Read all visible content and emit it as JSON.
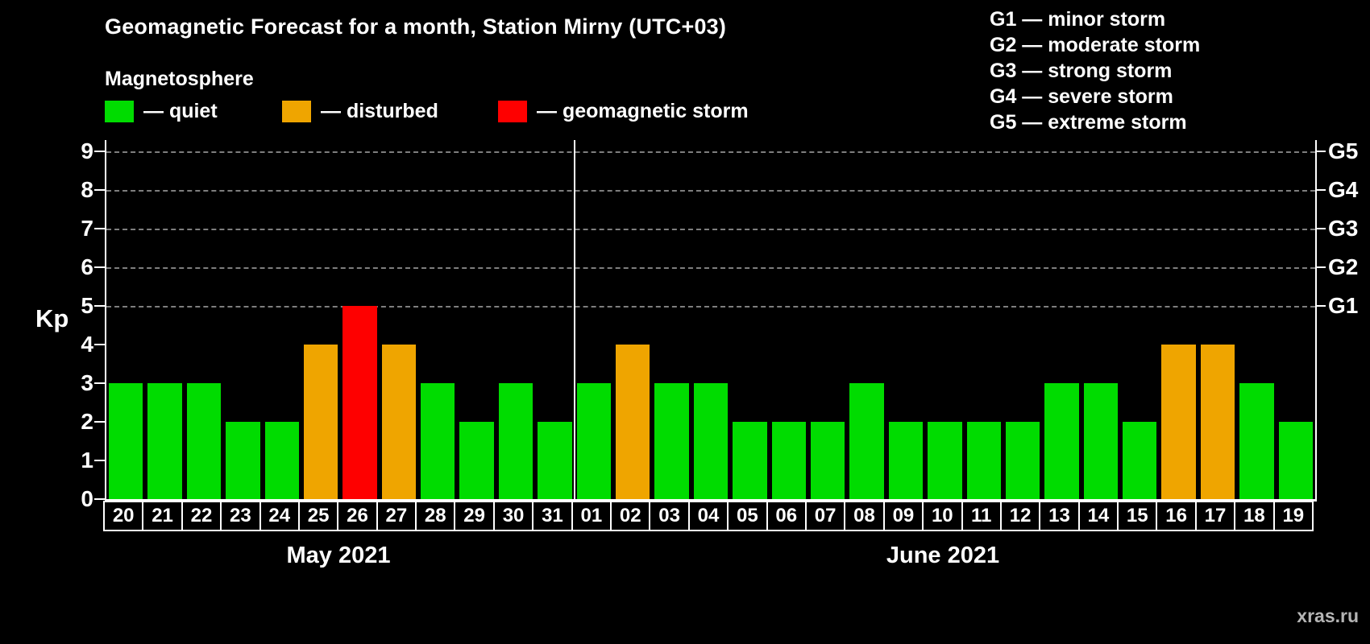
{
  "title": "Geomagnetic Forecast for a month, Station Mirny (UTC+03)",
  "legend": {
    "heading": "Magnetosphere",
    "items": [
      {
        "status": "quiet",
        "label": "— quiet"
      },
      {
        "status": "disturbed",
        "label": "— disturbed"
      },
      {
        "status": "storm",
        "label": "— geomagnetic storm"
      }
    ]
  },
  "status_colors": {
    "quiet": "#00dc00",
    "disturbed": "#efa500",
    "storm": "#fe0000"
  },
  "storm_scale": [
    "G1 — minor storm",
    "G2 — moderate storm",
    "G3 — strong storm",
    "G4 — severe storm",
    "G5 — extreme storm"
  ],
  "watermark": "xras.ru",
  "chart_data": {
    "type": "bar",
    "title": "Geomagnetic Forecast for a month, Station Mirny (UTC+03)",
    "ylabel": "Kp",
    "ylim": [
      0,
      9
    ],
    "yticks": [
      0,
      1,
      2,
      3,
      4,
      5,
      6,
      7,
      8,
      9
    ],
    "grid_levels": [
      5,
      6,
      7,
      8,
      9
    ],
    "grid": true,
    "right_axis": [
      {
        "label": "G1",
        "kp": 5
      },
      {
        "label": "G2",
        "kp": 6
      },
      {
        "label": "G3",
        "kp": 7
      },
      {
        "label": "G4",
        "kp": 8
      },
      {
        "label": "G5",
        "kp": 9
      }
    ],
    "months": [
      {
        "label": "May 2021",
        "days": [
          {
            "day": "20",
            "kp": 3,
            "status": "quiet"
          },
          {
            "day": "21",
            "kp": 3,
            "status": "quiet"
          },
          {
            "day": "22",
            "kp": 3,
            "status": "quiet"
          },
          {
            "day": "23",
            "kp": 2,
            "status": "quiet"
          },
          {
            "day": "24",
            "kp": 2,
            "status": "quiet"
          },
          {
            "day": "25",
            "kp": 4,
            "status": "disturbed"
          },
          {
            "day": "26",
            "kp": 5,
            "status": "storm"
          },
          {
            "day": "27",
            "kp": 4,
            "status": "disturbed"
          },
          {
            "day": "28",
            "kp": 3,
            "status": "quiet"
          },
          {
            "day": "29",
            "kp": 2,
            "status": "quiet"
          },
          {
            "day": "30",
            "kp": 3,
            "status": "quiet"
          },
          {
            "day": "31",
            "kp": 2,
            "status": "quiet"
          }
        ]
      },
      {
        "label": "June 2021",
        "days": [
          {
            "day": "01",
            "kp": 3,
            "status": "quiet"
          },
          {
            "day": "02",
            "kp": 4,
            "status": "disturbed"
          },
          {
            "day": "03",
            "kp": 3,
            "status": "quiet"
          },
          {
            "day": "04",
            "kp": 3,
            "status": "quiet"
          },
          {
            "day": "05",
            "kp": 2,
            "status": "quiet"
          },
          {
            "day": "06",
            "kp": 2,
            "status": "quiet"
          },
          {
            "day": "07",
            "kp": 2,
            "status": "quiet"
          },
          {
            "day": "08",
            "kp": 3,
            "status": "quiet"
          },
          {
            "day": "09",
            "kp": 2,
            "status": "quiet"
          },
          {
            "day": "10",
            "kp": 2,
            "status": "quiet"
          },
          {
            "day": "11",
            "kp": 2,
            "status": "quiet"
          },
          {
            "day": "12",
            "kp": 2,
            "status": "quiet"
          },
          {
            "day": "13",
            "kp": 3,
            "status": "quiet"
          },
          {
            "day": "14",
            "kp": 3,
            "status": "quiet"
          },
          {
            "day": "15",
            "kp": 2,
            "status": "quiet"
          },
          {
            "day": "16",
            "kp": 4,
            "status": "disturbed"
          },
          {
            "day": "17",
            "kp": 4,
            "status": "disturbed"
          },
          {
            "day": "18",
            "kp": 3,
            "status": "quiet"
          },
          {
            "day": "19",
            "kp": 2,
            "status": "quiet"
          }
        ]
      }
    ]
  }
}
